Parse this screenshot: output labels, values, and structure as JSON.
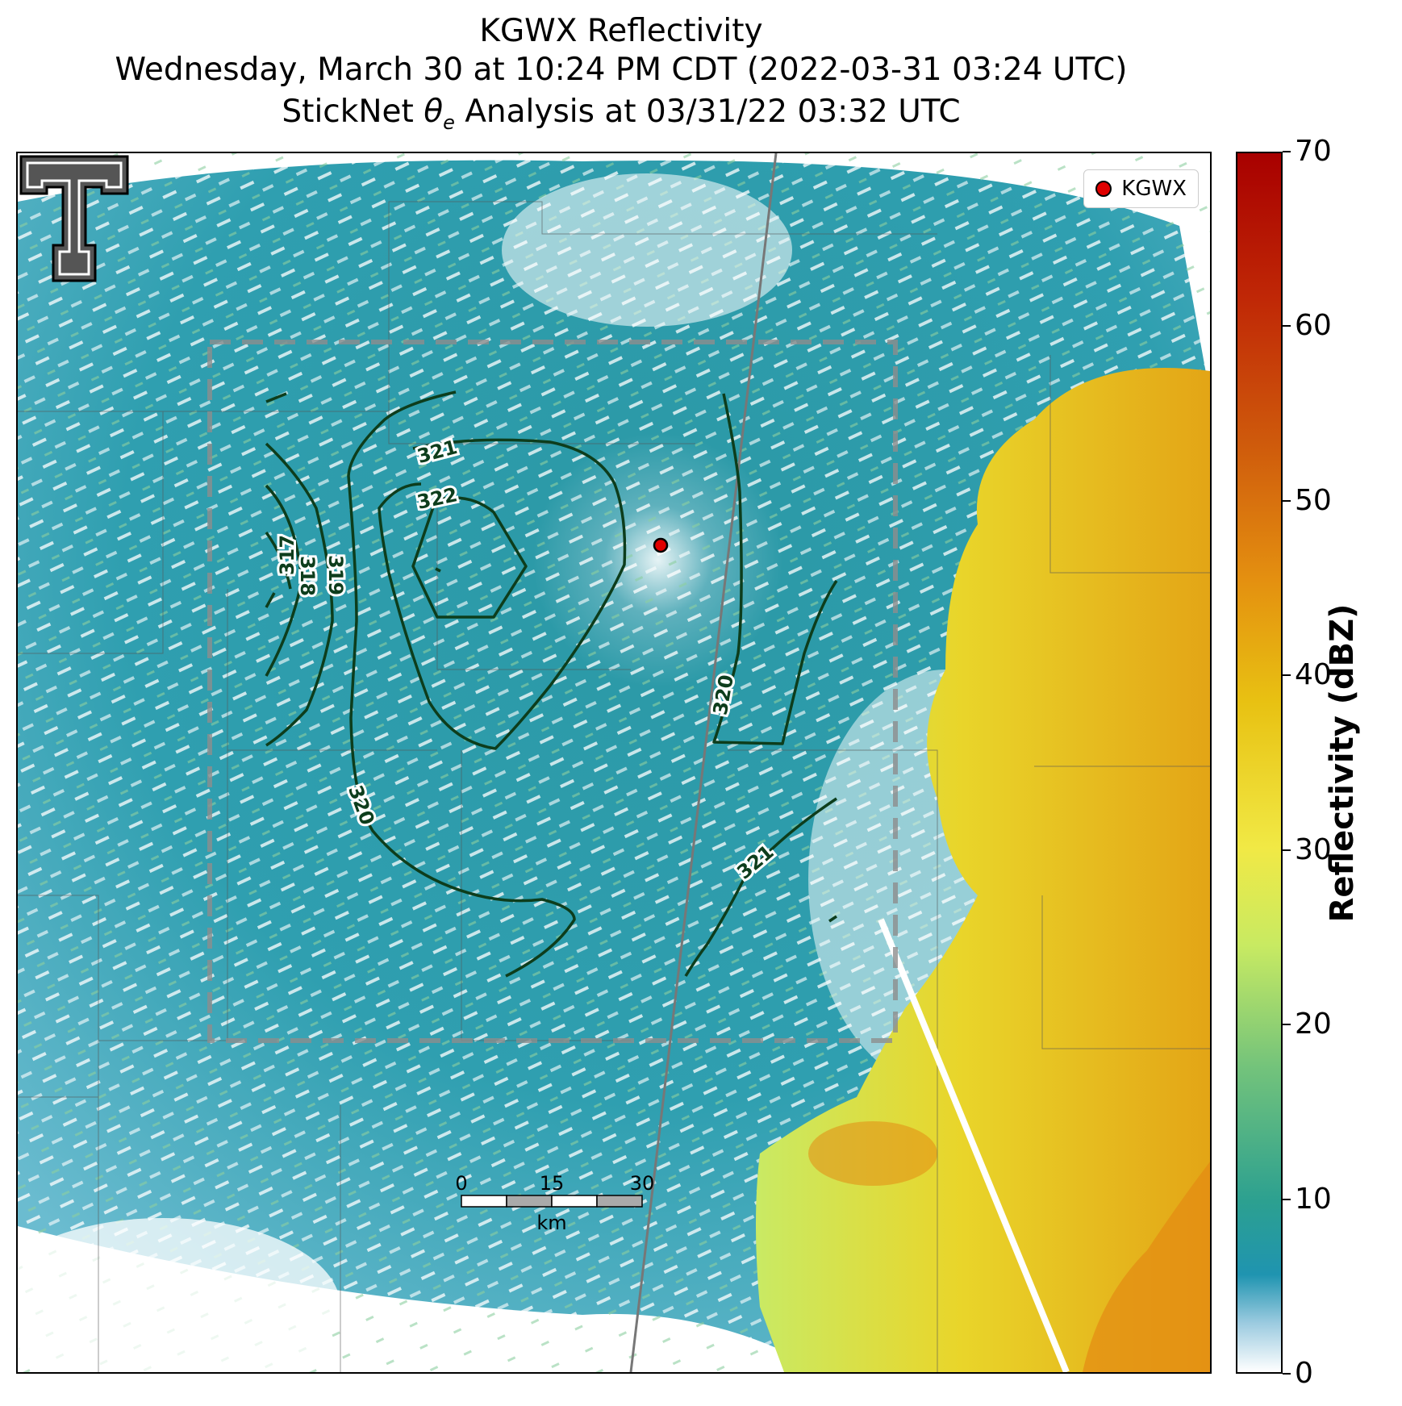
{
  "title": {
    "line1": "KGWX Reflectivity",
    "line2": "Wednesday, March 30 at 10:24 PM CDT (2022-03-31 03:24 UTC)",
    "line3": "StickNet θe Analysis at 03/31/22 03:32 UTC"
  },
  "legend": {
    "label": "KGWX",
    "marker_color": "#e00000"
  },
  "colorbar": {
    "title": "Reflectivity (dBZ)",
    "min": 0,
    "max": 70,
    "ticks": [
      "0",
      "10",
      "20",
      "30",
      "40",
      "50",
      "60",
      "70"
    ]
  },
  "contours": {
    "labels": [
      "317",
      "318",
      "319",
      "320",
      "321",
      "322"
    ],
    "color": "#0d3d1c"
  },
  "scale_bar": {
    "ticks": [
      "0",
      "15",
      "30"
    ],
    "unit": "km"
  },
  "logo": "texas-tech-logo"
}
